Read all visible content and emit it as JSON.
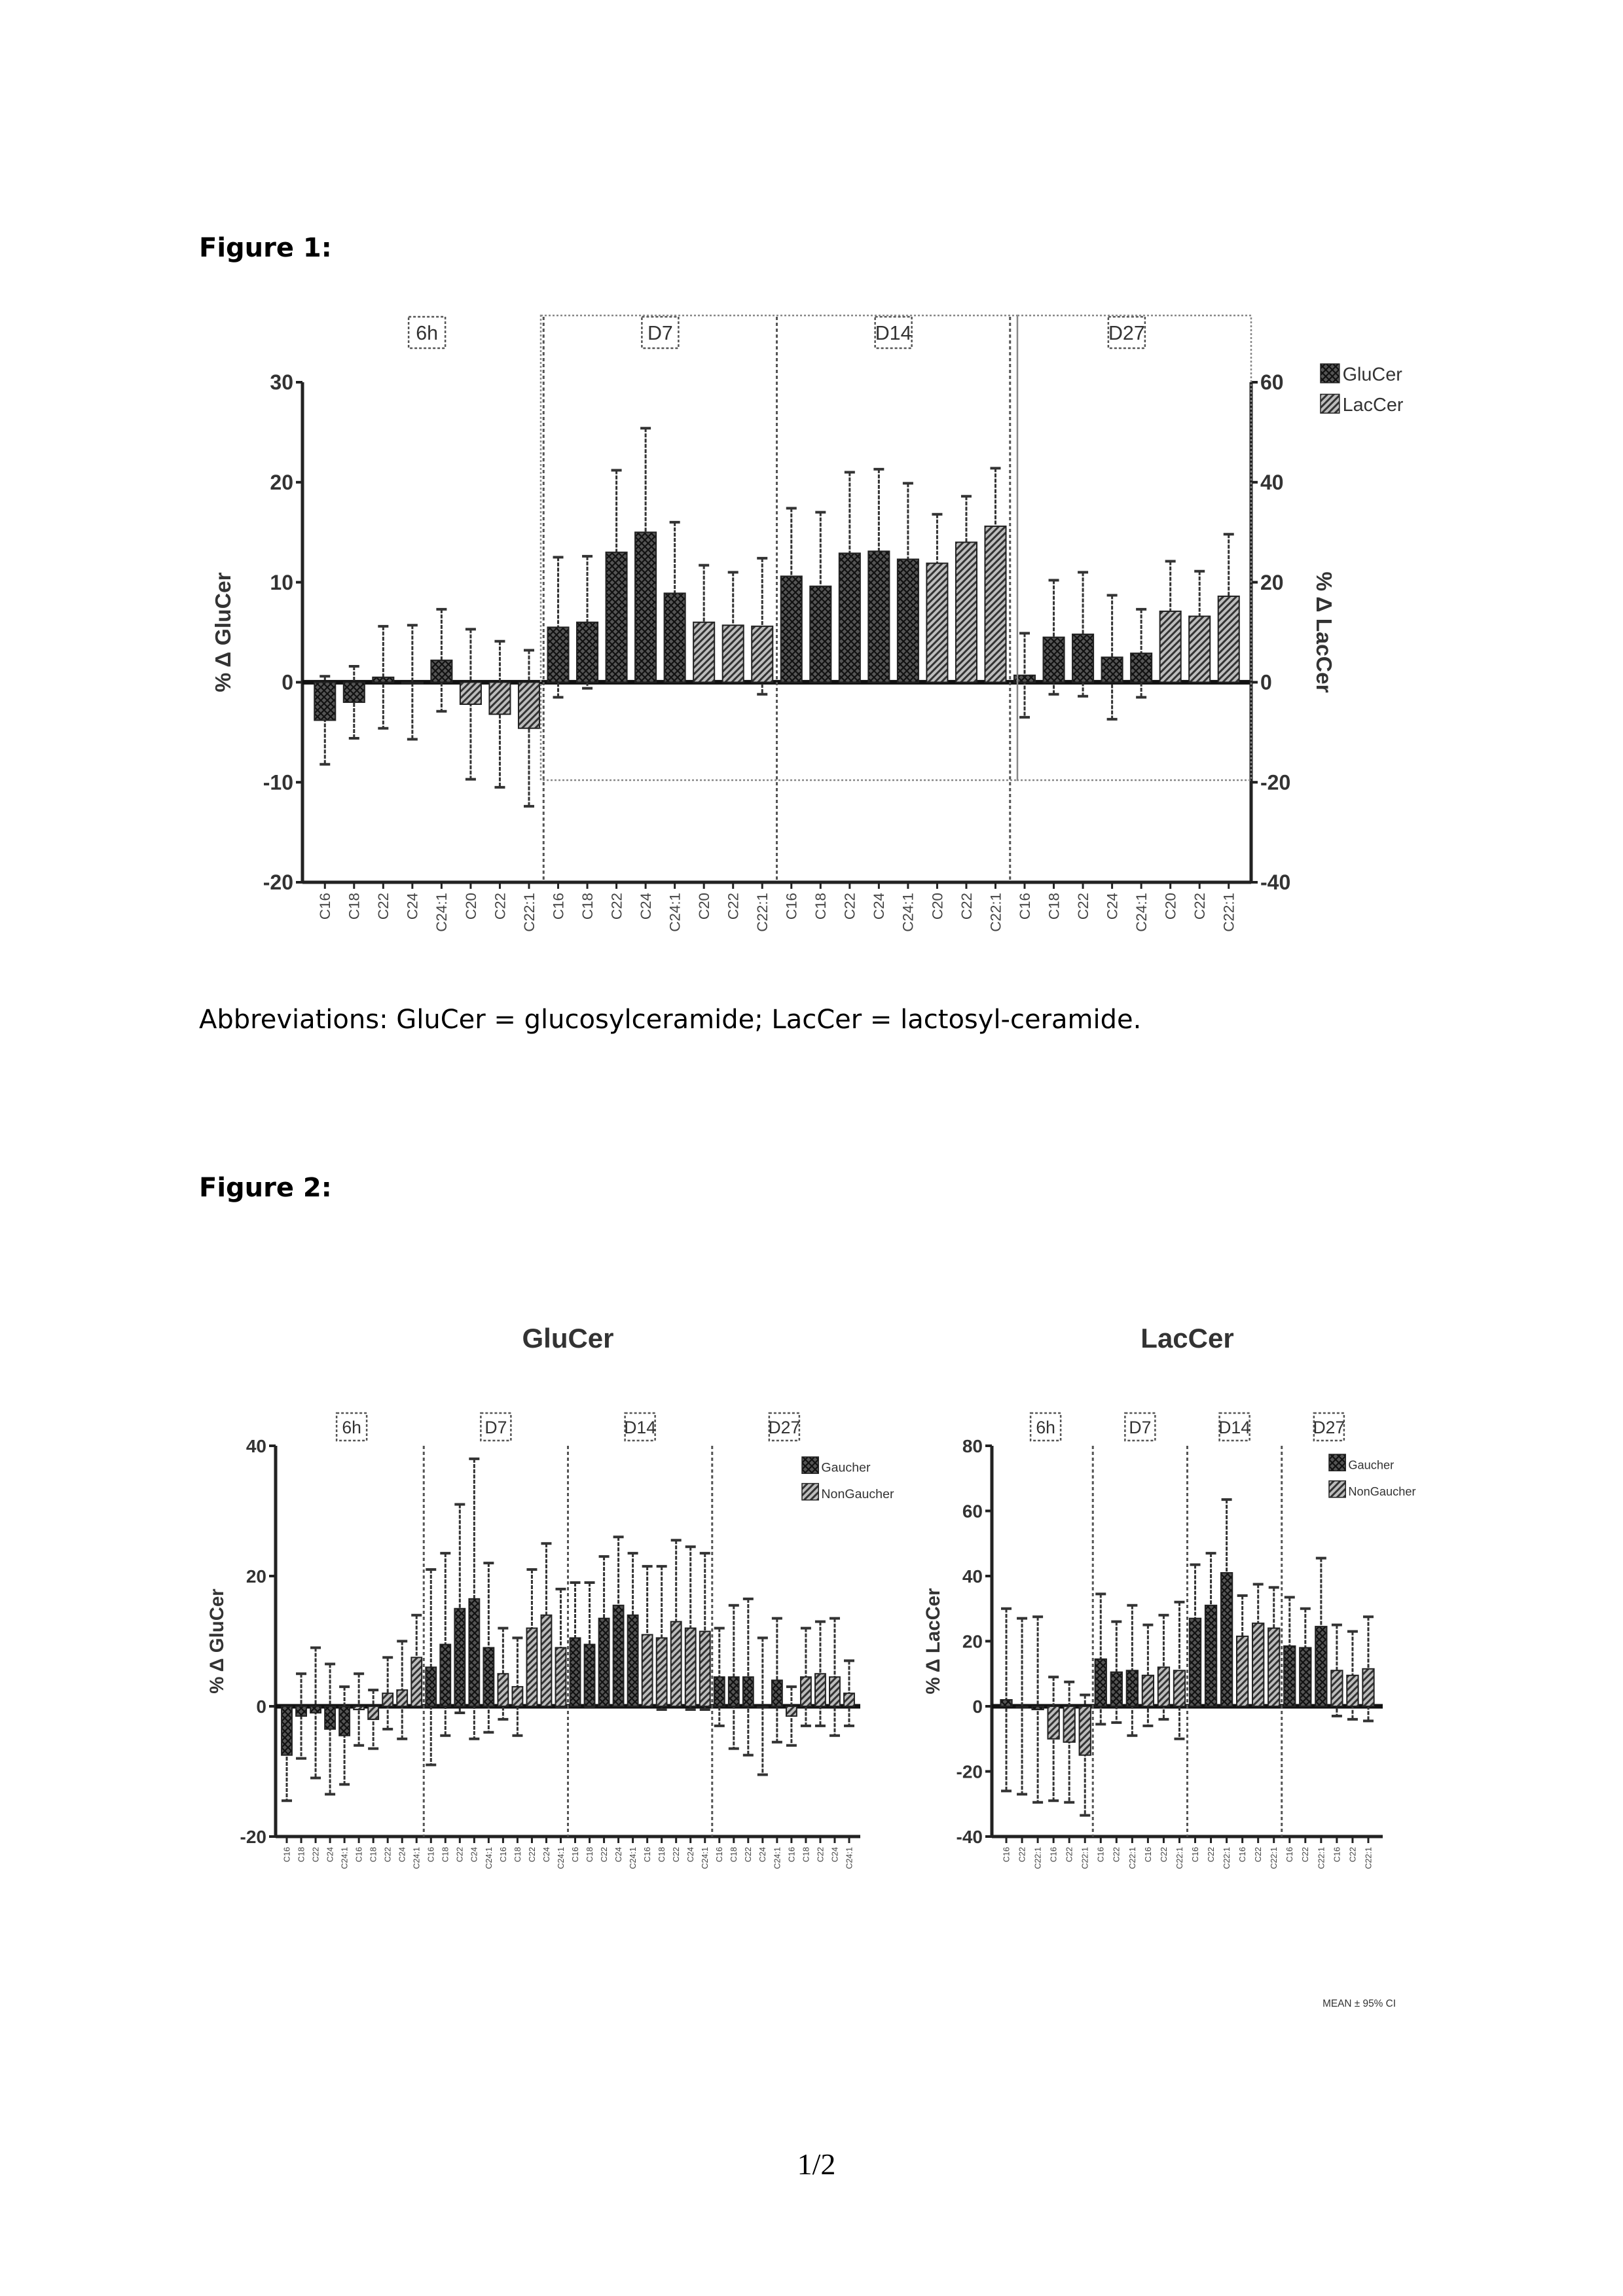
{
  "figure1_label": "Figure 1:",
  "abbreviations": "Abbreviations: GluCer = glucosylceramide; LacCer = lactosyl-ceramide.",
  "figure2_label": "Figure 2:",
  "page_number": "1/2",
  "colors": {
    "dark_bar": "#3a3a3a",
    "hatch_bar": "#6a6a6a",
    "axis": "#222222"
  },
  "chart_data": [
    {
      "type": "bar",
      "title": "",
      "ylabel": "% Δ GluCer",
      "y2label": "% Δ LacCer",
      "ylim": [
        -20,
        30
      ],
      "yticks": [
        -20,
        -10,
        0,
        10,
        20,
        30
      ],
      "y2lim": [
        -40,
        60
      ],
      "y2ticks": [
        -40,
        -20,
        0,
        20,
        40,
        60
      ],
      "legend": [
        {
          "name": "GluCer",
          "pattern": "crosshatch"
        },
        {
          "name": "LacCer",
          "pattern": "diagonal"
        }
      ],
      "legend_placement": "top-right",
      "groups": [
        "6h",
        "D7",
        "D14",
        "D27"
      ],
      "bars": [
        {
          "g": 0,
          "cat": "C16",
          "s": 0,
          "v": -3.8,
          "e": 4.4
        },
        {
          "g": 0,
          "cat": "C18",
          "s": 0,
          "v": -2.0,
          "e": 3.6
        },
        {
          "g": 0,
          "cat": "C22",
          "s": 0,
          "v": 0.5,
          "e": 5.1
        },
        {
          "g": 0,
          "cat": "C24",
          "s": 0,
          "v": 0.0,
          "e": 5.7
        },
        {
          "g": 0,
          "cat": "C24:1",
          "s": 0,
          "v": 2.2,
          "e": 5.1
        },
        {
          "g": 0,
          "cat": "C20",
          "s": 1,
          "v": -4.4,
          "e": 15.0
        },
        {
          "g": 0,
          "cat": "C22",
          "s": 1,
          "v": -6.4,
          "e": 14.6
        },
        {
          "g": 0,
          "cat": "C22:1",
          "s": 1,
          "v": -9.2,
          "e": 15.6
        },
        {
          "g": 1,
          "cat": "C16",
          "s": 0,
          "v": 5.5,
          "e": 7.0
        },
        {
          "g": 1,
          "cat": "C18",
          "s": 0,
          "v": 6.0,
          "e": 6.6
        },
        {
          "g": 1,
          "cat": "C22",
          "s": 0,
          "v": 13.0,
          "e": 8.2
        },
        {
          "g": 1,
          "cat": "C24",
          "s": 0,
          "v": 15.0,
          "e": 10.4
        },
        {
          "g": 1,
          "cat": "C24:1",
          "s": 0,
          "v": 8.9,
          "e": 7.1
        },
        {
          "g": 1,
          "cat": "C20",
          "s": 1,
          "v": 12.0,
          "e": 11.4
        },
        {
          "g": 1,
          "cat": "C22",
          "s": 1,
          "v": 11.4,
          "e": 10.6
        },
        {
          "g": 1,
          "cat": "C22:1",
          "s": 1,
          "v": 11.2,
          "e": 13.6
        },
        {
          "g": 2,
          "cat": "C16",
          "s": 0,
          "v": 10.6,
          "e": 6.8
        },
        {
          "g": 2,
          "cat": "C18",
          "s": 0,
          "v": 9.6,
          "e": 7.4
        },
        {
          "g": 2,
          "cat": "C22",
          "s": 0,
          "v": 12.9,
          "e": 8.1
        },
        {
          "g": 2,
          "cat": "C24",
          "s": 0,
          "v": 13.1,
          "e": 8.2
        },
        {
          "g": 2,
          "cat": "C24:1",
          "s": 0,
          "v": 12.3,
          "e": 7.6
        },
        {
          "g": 2,
          "cat": "C20",
          "s": 1,
          "v": 23.8,
          "e": 9.8
        },
        {
          "g": 2,
          "cat": "C22",
          "s": 1,
          "v": 28.0,
          "e": 9.2
        },
        {
          "g": 2,
          "cat": "C22:1",
          "s": 1,
          "v": 31.2,
          "e": 11.6
        },
        {
          "g": 3,
          "cat": "C16",
          "s": 0,
          "v": 0.7,
          "e": 4.2
        },
        {
          "g": 3,
          "cat": "C18",
          "s": 0,
          "v": 4.5,
          "e": 5.7
        },
        {
          "g": 3,
          "cat": "C22",
          "s": 0,
          "v": 4.8,
          "e": 6.2
        },
        {
          "g": 3,
          "cat": "C24",
          "s": 0,
          "v": 2.5,
          "e": 6.2
        },
        {
          "g": 3,
          "cat": "C24:1",
          "s": 0,
          "v": 2.9,
          "e": 4.4
        },
        {
          "g": 3,
          "cat": "C20",
          "s": 1,
          "v": 14.2,
          "e": 10.0
        },
        {
          "g": 3,
          "cat": "C22",
          "s": 1,
          "v": 13.2,
          "e": 9.0
        },
        {
          "g": 3,
          "cat": "C22:1",
          "s": 1,
          "v": 17.2,
          "e": 12.4
        }
      ]
    },
    {
      "type": "bar",
      "title": "GluCer",
      "ylabel": "% Δ GluCer",
      "ylim": [
        -20,
        40
      ],
      "yticks": [
        -20,
        0,
        20,
        40
      ],
      "legend": [
        {
          "name": "Gaucher",
          "pattern": "crosshatch"
        },
        {
          "name": "NonGaucher",
          "pattern": "diagonal"
        }
      ],
      "legend_placement": "top-right",
      "groups": [
        "6h",
        "D7",
        "D14",
        "D27"
      ],
      "bars": [
        {
          "g": 0,
          "cat": "C16",
          "s": 0,
          "v": -7.5,
          "e": 7.0
        },
        {
          "g": 0,
          "cat": "C18",
          "s": 0,
          "v": -1.5,
          "e": 6.5
        },
        {
          "g": 0,
          "cat": "C22",
          "s": 0,
          "v": -1.0,
          "e": 10.0
        },
        {
          "g": 0,
          "cat": "C24",
          "s": 0,
          "v": -3.5,
          "e": 10.0
        },
        {
          "g": 0,
          "cat": "C24:1",
          "s": 0,
          "v": -4.5,
          "e": 7.5
        },
        {
          "g": 0,
          "cat": "C16",
          "s": 1,
          "v": -0.5,
          "e": 5.5
        },
        {
          "g": 0,
          "cat": "C18",
          "s": 1,
          "v": -2.0,
          "e": 4.5
        },
        {
          "g": 0,
          "cat": "C22",
          "s": 1,
          "v": 2.0,
          "e": 5.5
        },
        {
          "g": 0,
          "cat": "C24",
          "s": 1,
          "v": 2.5,
          "e": 7.5
        },
        {
          "g": 0,
          "cat": "C24:1",
          "s": 1,
          "v": 7.5,
          "e": 6.5
        },
        {
          "g": 1,
          "cat": "C16",
          "s": 0,
          "v": 6.0,
          "e": 15.0
        },
        {
          "g": 1,
          "cat": "C18",
          "s": 0,
          "v": 9.5,
          "e": 14.0
        },
        {
          "g": 1,
          "cat": "C22",
          "s": 0,
          "v": 15.0,
          "e": 16.0
        },
        {
          "g": 1,
          "cat": "C24",
          "s": 0,
          "v": 16.5,
          "e": 21.5
        },
        {
          "g": 1,
          "cat": "C24:1",
          "s": 0,
          "v": 9.0,
          "e": 13.0
        },
        {
          "g": 1,
          "cat": "C16",
          "s": 1,
          "v": 5.0,
          "e": 7.0
        },
        {
          "g": 1,
          "cat": "C18",
          "s": 1,
          "v": 3.0,
          "e": 7.5
        },
        {
          "g": 1,
          "cat": "C22",
          "s": 1,
          "v": 12.0,
          "e": 9.0
        },
        {
          "g": 1,
          "cat": "C24",
          "s": 1,
          "v": 14.0,
          "e": 11.0
        },
        {
          "g": 1,
          "cat": "C24:1",
          "s": 1,
          "v": 9.0,
          "e": 9.0
        },
        {
          "g": 2,
          "cat": "C16",
          "s": 0,
          "v": 10.5,
          "e": 8.5
        },
        {
          "g": 2,
          "cat": "C18",
          "s": 0,
          "v": 9.5,
          "e": 9.5
        },
        {
          "g": 2,
          "cat": "C22",
          "s": 0,
          "v": 13.5,
          "e": 9.5
        },
        {
          "g": 2,
          "cat": "C24",
          "s": 0,
          "v": 15.5,
          "e": 10.5
        },
        {
          "g": 2,
          "cat": "C24:1",
          "s": 0,
          "v": 14.0,
          "e": 9.5
        },
        {
          "g": 2,
          "cat": "C16",
          "s": 1,
          "v": 11.0,
          "e": 10.5
        },
        {
          "g": 2,
          "cat": "C18",
          "s": 1,
          "v": 10.5,
          "e": 11.0
        },
        {
          "g": 2,
          "cat": "C22",
          "s": 1,
          "v": 13.0,
          "e": 12.5
        },
        {
          "g": 2,
          "cat": "C24",
          "s": 1,
          "v": 12.0,
          "e": 12.5
        },
        {
          "g": 2,
          "cat": "C24:1",
          "s": 1,
          "v": 11.5,
          "e": 12.0
        },
        {
          "g": 3,
          "cat": "C16",
          "s": 0,
          "v": 4.5,
          "e": 7.5
        },
        {
          "g": 3,
          "cat": "C18",
          "s": 0,
          "v": 4.5,
          "e": 11.0
        },
        {
          "g": 3,
          "cat": "C22",
          "s": 0,
          "v": 4.5,
          "e": 12.0
        },
        {
          "g": 3,
          "cat": "C24",
          "s": 0,
          "v": 0.0,
          "e": 10.5
        },
        {
          "g": 3,
          "cat": "C24:1",
          "s": 0,
          "v": 4.0,
          "e": 9.5
        },
        {
          "g": 3,
          "cat": "C16",
          "s": 1,
          "v": -1.5,
          "e": 4.5
        },
        {
          "g": 3,
          "cat": "C18",
          "s": 1,
          "v": 4.5,
          "e": 7.5
        },
        {
          "g": 3,
          "cat": "C22",
          "s": 1,
          "v": 5.0,
          "e": 8.0
        },
        {
          "g": 3,
          "cat": "C24",
          "s": 1,
          "v": 4.5,
          "e": 9.0
        },
        {
          "g": 3,
          "cat": "C24:1",
          "s": 1,
          "v": 2.0,
          "e": 5.0
        }
      ]
    },
    {
      "type": "bar",
      "title": "LacCer",
      "ylabel": "% Δ LacCer",
      "ylim": [
        -40,
        80
      ],
      "yticks": [
        -40,
        -20,
        0,
        20,
        40,
        60,
        80
      ],
      "legend": [
        {
          "name": "Gaucher",
          "pattern": "crosshatch"
        },
        {
          "name": "NonGaucher",
          "pattern": "diagonal"
        }
      ],
      "legend_placement": "top-right",
      "note": "MEAN ± 95% CI",
      "groups": [
        "6h",
        "D7",
        "D14",
        "D27"
      ],
      "bars": [
        {
          "g": 0,
          "cat": "C16",
          "s": 0,
          "v": 2.0,
          "e": 28.0
        },
        {
          "g": 0,
          "cat": "C22",
          "s": 0,
          "v": 0.0,
          "e": 27.0
        },
        {
          "g": 0,
          "cat": "C22:1",
          "s": 0,
          "v": -1.0,
          "e": 28.5
        },
        {
          "g": 0,
          "cat": "C16",
          "s": 1,
          "v": -10.0,
          "e": 19.0
        },
        {
          "g": 0,
          "cat": "C22",
          "s": 1,
          "v": -11.0,
          "e": 18.5
        },
        {
          "g": 0,
          "cat": "C22:1",
          "s": 1,
          "v": -15.0,
          "e": 18.5
        },
        {
          "g": 1,
          "cat": "C16",
          "s": 0,
          "v": 14.5,
          "e": 20.0
        },
        {
          "g": 1,
          "cat": "C22",
          "s": 0,
          "v": 10.5,
          "e": 15.5
        },
        {
          "g": 1,
          "cat": "C22:1",
          "s": 0,
          "v": 11.0,
          "e": 20.0
        },
        {
          "g": 1,
          "cat": "C16",
          "s": 1,
          "v": 9.5,
          "e": 15.5
        },
        {
          "g": 1,
          "cat": "C22",
          "s": 1,
          "v": 12.0,
          "e": 16.0
        },
        {
          "g": 1,
          "cat": "C22:1",
          "s": 1,
          "v": 11.0,
          "e": 21.0
        },
        {
          "g": 2,
          "cat": "C16",
          "s": 0,
          "v": 27.0,
          "e": 16.5
        },
        {
          "g": 2,
          "cat": "C22",
          "s": 0,
          "v": 31.0,
          "e": 16.0
        },
        {
          "g": 2,
          "cat": "C22:1",
          "s": 0,
          "v": 41.0,
          "e": 22.5
        },
        {
          "g": 2,
          "cat": "C16",
          "s": 1,
          "v": 21.5,
          "e": 12.5
        },
        {
          "g": 2,
          "cat": "C22",
          "s": 1,
          "v": 25.5,
          "e": 12.0
        },
        {
          "g": 2,
          "cat": "C22:1",
          "s": 1,
          "v": 24.0,
          "e": 12.5
        },
        {
          "g": 3,
          "cat": "C16",
          "s": 0,
          "v": 18.5,
          "e": 15.0
        },
        {
          "g": 3,
          "cat": "C22",
          "s": 0,
          "v": 18.0,
          "e": 12.0
        },
        {
          "g": 3,
          "cat": "C22:1",
          "s": 0,
          "v": 24.5,
          "e": 21.0
        },
        {
          "g": 3,
          "cat": "C16",
          "s": 1,
          "v": 11.0,
          "e": 14.0
        },
        {
          "g": 3,
          "cat": "C22",
          "s": 1,
          "v": 9.5,
          "e": 13.5
        },
        {
          "g": 3,
          "cat": "C22:1",
          "s": 1,
          "v": 11.5,
          "e": 16.0
        }
      ]
    }
  ]
}
